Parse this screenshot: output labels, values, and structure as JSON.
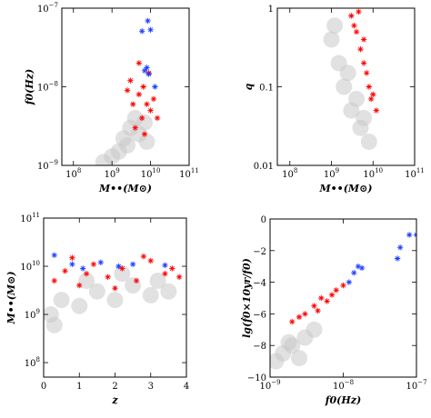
{
  "colors": {
    "background": "#c8c8c8",
    "red": "#ff0000",
    "blue": "#1f3fff"
  },
  "chart_data": [
    {
      "type": "scatter",
      "log_x": true,
      "log_y": true,
      "xlim": [
        50000000.0,
        100000000000.0
      ],
      "ylim": [
        1e-09,
        1e-07
      ],
      "xlabel": "M••(M⊙)",
      "ylabel": "f0(Hz)",
      "xticks": [
        {
          "value": 100000000.0,
          "base": "10",
          "exp": "8"
        },
        {
          "value": 1000000000.0,
          "base": "10",
          "exp": "9"
        },
        {
          "value": 10000000000.0,
          "base": "10",
          "exp": "10"
        },
        {
          "value": 100000000000.0,
          "base": "10",
          "exp": "11"
        }
      ],
      "yticks": [
        {
          "value": 1e-09,
          "base": "10",
          "exp": "−9"
        },
        {
          "value": 1e-08,
          "base": "10",
          "exp": "−8"
        },
        {
          "value": 1e-07,
          "base": "10",
          "exp": "−7"
        }
      ],
      "series": [
        {
          "color": "#c8c8c8",
          "marker": "dot",
          "points": [
            [
              1500000000.0,
              1.5e-09
            ],
            [
              2000000000.0,
              2.2e-09
            ],
            [
              3000000000.0,
              3e-09
            ],
            [
              5000000000.0,
              2.5e-09
            ],
            [
              8000000000.0,
              2e-09
            ],
            [
              1000000000.0,
              1.3e-09
            ],
            [
              600000000.0,
              1.1e-09
            ],
            [
              4000000000.0,
              4e-09
            ],
            [
              2500000000.0,
              1.8e-09
            ],
            [
              7000000000.0,
              3.5e-09
            ]
          ]
        },
        {
          "color": "#ff0000",
          "marker": "star",
          "points": [
            [
              3000000000.0,
              1.2e-08
            ],
            [
              5000000000.0,
              8e-09
            ],
            [
              8000000000.0,
              6e-09
            ],
            [
              10000000000.0,
              5e-09
            ],
            [
              6000000000.0,
              4e-09
            ],
            [
              4000000000.0,
              3e-09
            ],
            [
              7000000000.0,
              2.5e-09
            ],
            [
              12000000000.0,
              7e-09
            ],
            [
              9000000000.0,
              1.5e-08
            ],
            [
              5000000000.0,
              2e-08
            ],
            [
              15000000000.0,
              4e-09
            ],
            [
              3500000000.0,
              6e-09
            ],
            [
              2500000000.0,
              9e-09
            ],
            [
              6500000000.0,
              1e-08
            ]
          ]
        },
        {
          "color": "#1f3fff",
          "marker": "star",
          "points": [
            [
              8500000000.0,
              6.9e-08
            ],
            [
              6000000000.0,
              5.1e-08
            ],
            [
              10000000000.0,
              5.3e-08
            ],
            [
              8000000000.0,
              1.75e-08
            ],
            [
              7000000000.0,
              1.6e-08
            ],
            [
              9000000000.0,
              1.45e-08
            ],
            [
              13000000000.0,
              1e-08
            ]
          ]
        }
      ]
    },
    {
      "type": "scatter",
      "log_x": true,
      "log_y": true,
      "xlim": [
        50000000.0,
        100000000000.0
      ],
      "ylim": [
        0.01,
        1
      ],
      "xlabel": "M••(M⊙)",
      "ylabel": "q",
      "xticks": [
        {
          "value": 100000000.0,
          "base": "10",
          "exp": "8"
        },
        {
          "value": 1000000000.0,
          "base": "10",
          "exp": "9"
        },
        {
          "value": 10000000000.0,
          "base": "10",
          "exp": "10"
        },
        {
          "value": 100000000000.0,
          "base": "10",
          "exp": "11"
        }
      ],
      "yticks": [
        {
          "value": 0.01,
          "label": "0.01"
        },
        {
          "value": 0.1,
          "label": "0.1"
        },
        {
          "value": 1,
          "label": "1"
        }
      ],
      "series": [
        {
          "color": "#c8c8c8",
          "marker": "dot",
          "points": [
            [
              1000000000.0,
              0.4
            ],
            [
              1500000000.0,
              0.2
            ],
            [
              2000000000.0,
              0.1
            ],
            [
              3000000000.0,
              0.05
            ],
            [
              5000000000.0,
              0.03
            ],
            [
              8000000000.0,
              0.02
            ],
            [
              1200000000.0,
              0.6
            ],
            [
              2500000000.0,
              0.15
            ],
            [
              4000000000.0,
              0.07
            ],
            [
              6000000000.0,
              0.04
            ]
          ]
        },
        {
          "color": "#ff0000",
          "marker": "star",
          "points": [
            [
              3000000000.0,
              0.8
            ],
            [
              4000000000.0,
              0.5
            ],
            [
              5000000000.0,
              0.3
            ],
            [
              6000000000.0,
              0.2
            ],
            [
              8000000000.0,
              0.1
            ],
            [
              10000000000.0,
              0.08
            ],
            [
              12000000000.0,
              0.05
            ],
            [
              3500000000.0,
              0.6
            ],
            [
              7000000000.0,
              0.15
            ],
            [
              9000000000.0,
              0.07
            ],
            [
              4500000000.0,
              0.9
            ],
            [
              6000000000.0,
              0.4
            ]
          ]
        }
      ]
    },
    {
      "type": "scatter",
      "log_x": false,
      "log_y": true,
      "xlim": [
        0,
        4
      ],
      "ylim": [
        50000000.0,
        100000000000.0
      ],
      "xlabel": "z",
      "ylabel": "M••(M⊙)",
      "xticks": [
        {
          "value": 0,
          "label": "0"
        },
        {
          "value": 1,
          "label": "1"
        },
        {
          "value": 2,
          "label": "2"
        },
        {
          "value": 3,
          "label": "3"
        },
        {
          "value": 4,
          "label": "4"
        }
      ],
      "yticks": [
        {
          "value": 100000000.0,
          "base": "10",
          "exp": "8"
        },
        {
          "value": 1000000000.0,
          "base": "10",
          "exp": "9"
        },
        {
          "value": 10000000000.0,
          "base": "10",
          "exp": "10"
        },
        {
          "value": 100000000000.0,
          "base": "10",
          "exp": "11"
        }
      ],
      "series": [
        {
          "color": "#c8c8c8",
          "marker": "dot",
          "points": [
            [
              0.2,
              1000000000.0
            ],
            [
              0.5,
              2000000000.0
            ],
            [
              1,
              1500000000.0
            ],
            [
              1.5,
              3000000000.0
            ],
            [
              2,
              2000000000.0
            ],
            [
              2.5,
              4000000000.0
            ],
            [
              3,
              2500000000.0
            ],
            [
              3.5,
              3000000000.0
            ],
            [
              0.3,
              600000000.0
            ],
            [
              1.2,
              5000000000.0
            ],
            [
              2.2,
              7000000000.0
            ],
            [
              3.2,
              5000000000.0
            ]
          ]
        },
        {
          "color": "#ff0000",
          "marker": "star",
          "points": [
            [
              0.3,
              5000000000.0
            ],
            [
              0.6,
              8000000000.0
            ],
            [
              1,
              4000000000.0
            ],
            [
              1.4,
              11000000000.0
            ],
            [
              1.8,
              6000000000.0
            ],
            [
              2.2,
              9000000000.0
            ],
            [
              2.6,
              5000000000.0
            ],
            [
              3,
              13000000000.0
            ],
            [
              3.4,
              7000000000.0
            ],
            [
              3.8,
              6000000000.0
            ],
            [
              0.8,
              15000000000.0
            ],
            [
              2,
              3500000000.0
            ],
            [
              2.8,
              16000000000.0
            ],
            [
              1.2,
              7000000000.0
            ],
            [
              3.6,
              9000000000.0
            ]
          ]
        },
        {
          "color": "#1f3fff",
          "marker": "star",
          "points": [
            [
              0.3,
              17000000000.0
            ],
            [
              0.8,
              11000000000.0
            ],
            [
              1.6,
              12000000000.0
            ],
            [
              2.1,
              10000000000.0
            ],
            [
              2.5,
              11000000000.0
            ],
            [
              3.4,
              10500000000.0
            ],
            [
              1.1,
              9000000000.0
            ]
          ]
        }
      ]
    },
    {
      "type": "scatter",
      "log_x": true,
      "log_y": false,
      "xlim": [
        1e-09,
        1e-07
      ],
      "ylim": [
        -10,
        0
      ],
      "xlabel": "f0(Hz)",
      "ylabel": "lg(ḟ0×10yr/f0)",
      "xticks": [
        {
          "value": 1e-09,
          "base": "10",
          "exp": "−9"
        },
        {
          "value": 1e-08,
          "base": "10",
          "exp": "−8"
        },
        {
          "value": 1e-07,
          "base": "10",
          "exp": "−7"
        }
      ],
      "yticks": [
        {
          "value": -10,
          "label": "−10"
        },
        {
          "value": -8,
          "label": "−8"
        },
        {
          "value": -6,
          "label": "−6"
        },
        {
          "value": -4,
          "label": "−4"
        },
        {
          "value": -2,
          "label": "−2"
        },
        {
          "value": 0,
          "label": "0"
        }
      ],
      "series": [
        {
          "color": "#c8c8c8",
          "marker": "dot",
          "points": [
            [
              1.2e-09,
              -9
            ],
            [
              1.5e-09,
              -8.5
            ],
            [
              2e-09,
              -8
            ],
            [
              3e-09,
              -7.5
            ],
            [
              4e-09,
              -7
            ],
            [
              2.5e-09,
              -8.8
            ],
            [
              1.8e-09,
              -7.8
            ]
          ]
        },
        {
          "color": "#ff0000",
          "marker": "star",
          "points": [
            [
              2e-09,
              -6.5
            ],
            [
              3e-09,
              -6
            ],
            [
              4e-09,
              -5.5
            ],
            [
              5e-09,
              -5
            ],
            [
              6e-09,
              -5.2
            ],
            [
              8e-09,
              -4.5
            ],
            [
              1e-08,
              -4.2
            ],
            [
              2.5e-09,
              -6.2
            ],
            [
              4.5e-09,
              -5.8
            ],
            [
              7e-09,
              -4.8
            ]
          ]
        },
        {
          "color": "#1f3fff",
          "marker": "star",
          "points": [
            [
              1.2e-08,
              -4
            ],
            [
              1.4e-08,
              -3.4
            ],
            [
              1.6e-08,
              -3
            ],
            [
              1.8e-08,
              -3.1
            ],
            [
              5.5e-08,
              -2.5
            ],
            [
              6e-08,
              -1.8
            ],
            [
              8e-08,
              -1
            ],
            [
              1e-07,
              -1
            ]
          ]
        }
      ]
    }
  ]
}
